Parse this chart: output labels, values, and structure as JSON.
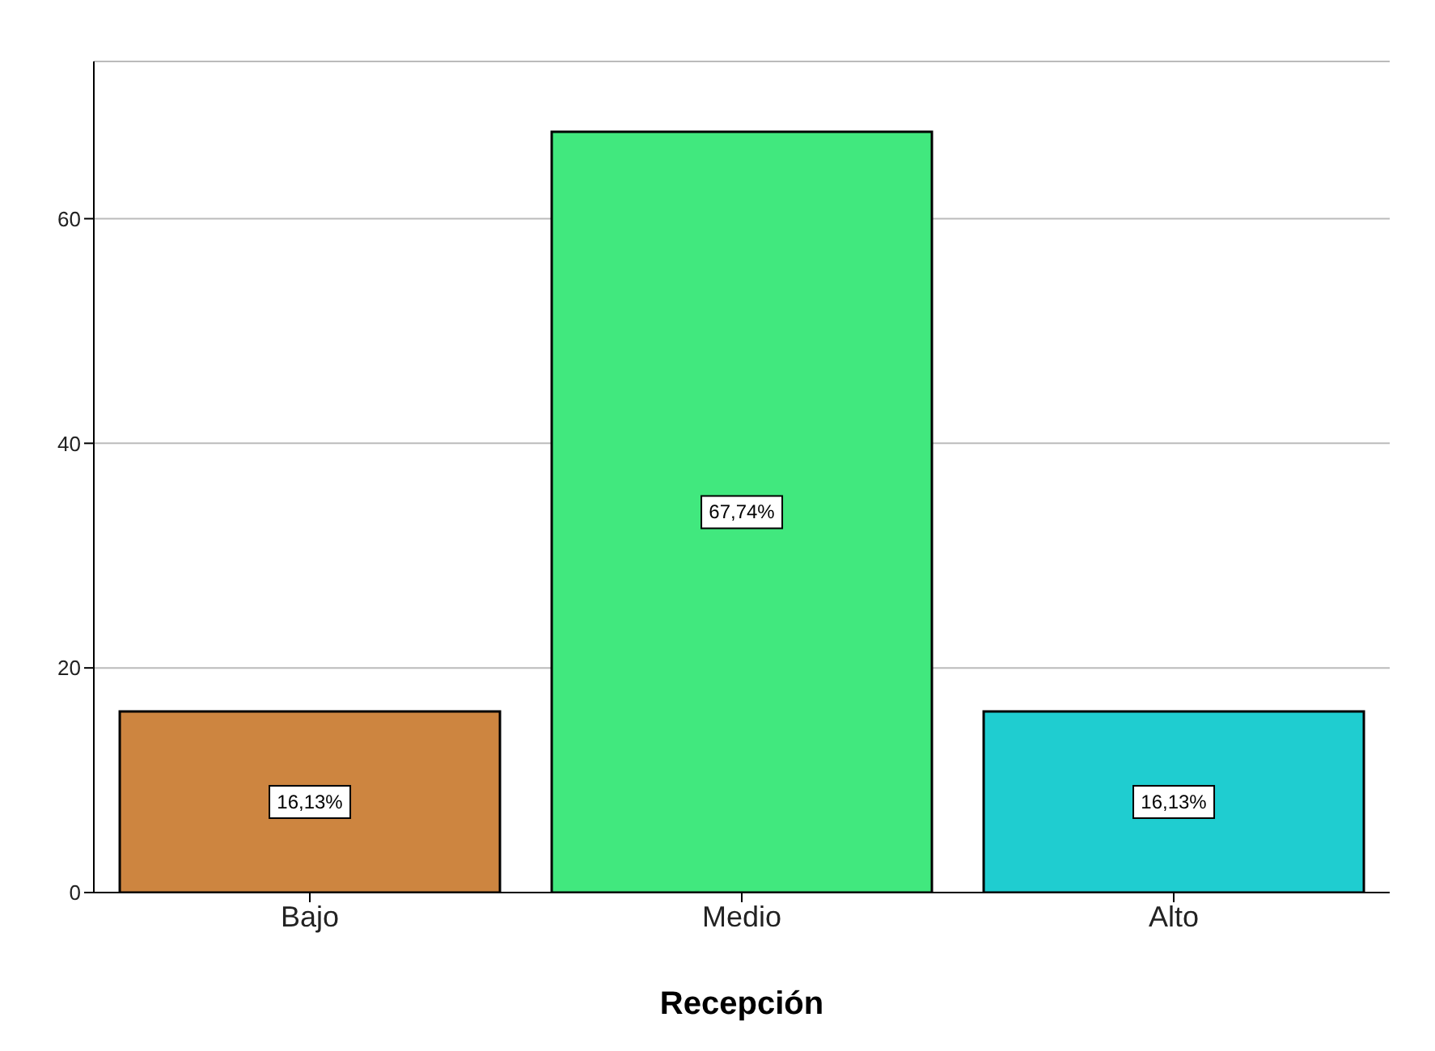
{
  "chart_data": {
    "type": "bar",
    "xlabel": "Recepción",
    "categories": [
      "Bajo",
      "Medio",
      "Alto"
    ],
    "values": [
      16.13,
      67.74,
      16.13
    ],
    "colors": [
      "#cd8540",
      "#41e87e",
      "#1fcdd0"
    ],
    "value_labels": [
      "16,13%",
      "67,74%",
      "16,13%"
    ],
    "ylim": [
      0,
      74
    ],
    "yticks": [
      0,
      20,
      40,
      60
    ],
    "grid": "y"
  }
}
